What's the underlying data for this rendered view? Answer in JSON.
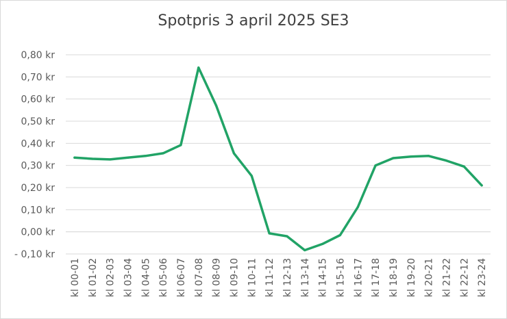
{
  "chart_data": {
    "type": "line",
    "title": "Spotpris 3 april 2025 SE3",
    "xlabel": "",
    "ylabel": "",
    "ylim": [
      -0.1,
      0.8
    ],
    "yticks": [
      {
        "value": 0.8,
        "label": "0,80 kr"
      },
      {
        "value": 0.7,
        "label": "0,70 kr"
      },
      {
        "value": 0.6,
        "label": "0,60 kr"
      },
      {
        "value": 0.5,
        "label": "0,50 kr"
      },
      {
        "value": 0.4,
        "label": "0,40 kr"
      },
      {
        "value": 0.3,
        "label": "0,30 kr"
      },
      {
        "value": 0.2,
        "label": "0,20 kr"
      },
      {
        "value": 0.1,
        "label": "0,10 kr"
      },
      {
        "value": 0.0,
        "label": "0,00 kr"
      },
      {
        "value": -0.1,
        "label": "- 0,10 kr"
      }
    ],
    "grid": true,
    "legend": "none",
    "color": "#21a366",
    "categories": [
      "kl 00-01",
      "kl 01-02",
      "kl 02-03",
      "kl 03-04",
      "kl 04-05",
      "kl 05-06",
      "kl 06-07",
      "kl 07-08",
      "kl 08-09",
      "kl 09-10",
      "kl 10-11",
      "kl 11-12",
      "kl 12-13",
      "kl 13-14",
      "kl 14-15",
      "kl 15-16",
      "kl 16-17",
      "kl 17-18",
      "kl 18-19",
      "kl 19-20",
      "kl 20-21",
      "kl 21-22",
      "kl 22-12",
      "kl 23-24"
    ],
    "series": [
      {
        "values": [
          0.335,
          0.33,
          0.327,
          0.335,
          0.343,
          0.355,
          0.392,
          0.742,
          0.57,
          0.355,
          0.253,
          -0.007,
          -0.02,
          -0.083,
          -0.055,
          -0.015,
          0.112,
          0.3,
          0.333,
          0.34,
          0.343,
          0.322,
          0.295,
          0.21
        ]
      }
    ]
  }
}
